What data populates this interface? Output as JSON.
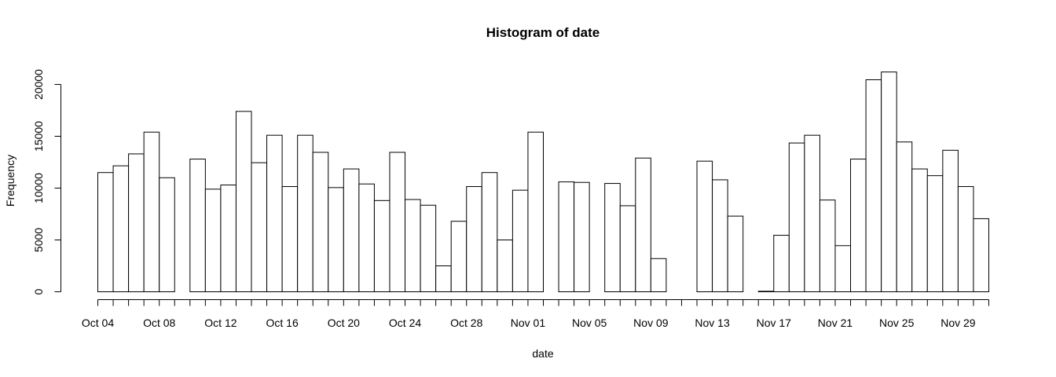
{
  "chart_data": {
    "type": "bar",
    "title": "Histogram of date",
    "xlabel": "date",
    "ylabel": "Frequency",
    "ylim": [
      0,
      21000
    ],
    "yticks": [
      "0",
      "5000",
      "10000",
      "15000",
      "20000"
    ],
    "ytick_values": [
      0,
      5000,
      10000,
      15000,
      20000
    ],
    "xlim": [
      "2023-10-04",
      "2023-12-01"
    ],
    "x_tick_dates": [
      "2023-10-04",
      "2023-10-08",
      "2023-10-12",
      "2023-10-16",
      "2023-10-20",
      "2023-10-24",
      "2023-10-28",
      "2023-11-01",
      "2023-11-05",
      "2023-11-09",
      "2023-11-13",
      "2023-11-17",
      "2023-11-21",
      "2023-11-25",
      "2023-11-29"
    ],
    "x_tick_labels": [
      "Oct 04",
      "Oct 08",
      "Oct 12",
      "Oct 16",
      "Oct 20",
      "Oct 24",
      "Oct 28",
      "Nov 01",
      "Nov 05",
      "Nov 09",
      "Nov 13",
      "Nov 17",
      "Nov 21",
      "Nov 25",
      "Nov 29"
    ],
    "bin_starts": [
      "2023-10-04",
      "2023-10-05",
      "2023-10-06",
      "2023-10-07",
      "2023-10-08",
      "2023-10-09",
      "2023-10-10",
      "2023-10-11",
      "2023-10-12",
      "2023-10-13",
      "2023-10-14",
      "2023-10-15",
      "2023-10-16",
      "2023-10-17",
      "2023-10-18",
      "2023-10-19",
      "2023-10-20",
      "2023-10-21",
      "2023-10-22",
      "2023-10-23",
      "2023-10-24",
      "2023-10-25",
      "2023-10-26",
      "2023-10-27",
      "2023-10-28",
      "2023-10-29",
      "2023-10-30",
      "2023-10-31",
      "2023-11-01",
      "2023-11-02",
      "2023-11-03",
      "2023-11-04",
      "2023-11-05",
      "2023-11-06",
      "2023-11-07",
      "2023-11-08",
      "2023-11-09",
      "2023-11-10",
      "2023-11-11",
      "2023-11-12",
      "2023-11-13",
      "2023-11-14",
      "2023-11-15",
      "2023-11-16",
      "2023-11-17",
      "2023-11-18",
      "2023-11-19",
      "2023-11-20",
      "2023-11-21",
      "2023-11-22",
      "2023-11-23",
      "2023-11-24",
      "2023-11-25",
      "2023-11-26",
      "2023-11-27",
      "2023-11-28",
      "2023-11-29",
      "2023-11-30"
    ],
    "values": [
      11500,
      12150,
      13300,
      15400,
      11000,
      0,
      12800,
      9900,
      10300,
      17400,
      12450,
      15100,
      10150,
      15100,
      13450,
      10050,
      11850,
      10400,
      8800,
      13450,
      8900,
      8350,
      2500,
      6800,
      10150,
      11500,
      5000,
      9800,
      15400,
      0,
      10600,
      10550,
      0,
      10450,
      8300,
      12900,
      3200,
      0,
      0,
      12600,
      10800,
      7300,
      0,
      50,
      5450,
      14350,
      15100,
      8850,
      4450,
      12800,
      20450,
      21200,
      14450,
      11850,
      11200,
      13650,
      10150,
      7050
    ]
  }
}
